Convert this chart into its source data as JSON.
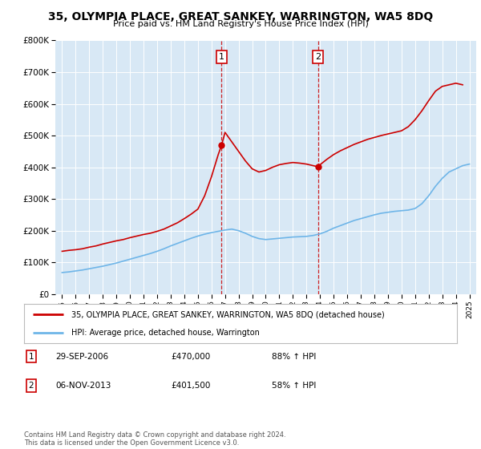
{
  "title": "35, OLYMPIA PLACE, GREAT SANKEY, WARRINGTON, WA5 8DQ",
  "subtitle": "Price paid vs. HM Land Registry's House Price Index (HPI)",
  "legend_line1": "35, OLYMPIA PLACE, GREAT SANKEY, WARRINGTON, WA5 8DQ (detached house)",
  "legend_line2": "HPI: Average price, detached house, Warrington",
  "footnote": "Contains HM Land Registry data © Crown copyright and database right 2024.\nThis data is licensed under the Open Government Licence v3.0.",
  "annotation1_label": "1",
  "annotation1_date": "29-SEP-2006",
  "annotation1_price": "£470,000",
  "annotation1_hpi": "88% ↑ HPI",
  "annotation2_label": "2",
  "annotation2_date": "06-NOV-2013",
  "annotation2_price": "£401,500",
  "annotation2_hpi": "58% ↑ HPI",
  "sale1_x": 2006.75,
  "sale1_y": 470000,
  "sale2_x": 2013.85,
  "sale2_y": 401500,
  "hpi_color": "#6EB5E8",
  "sale_color": "#CC0000",
  "vline_color": "#CC0000",
  "background_color": "#FFFFFF",
  "plot_bg_color": "#D8E8F5",
  "ylim": [
    0,
    800000
  ],
  "xlim_start": 1994.5,
  "xlim_end": 2025.5,
  "hpi_x": [
    1995,
    1995.5,
    1996,
    1996.5,
    1997,
    1997.5,
    1998,
    1998.5,
    1999,
    1999.5,
    2000,
    2000.5,
    2001,
    2001.5,
    2002,
    2002.5,
    2003,
    2003.5,
    2004,
    2004.5,
    2005,
    2005.5,
    2006,
    2006.5,
    2007,
    2007.5,
    2008,
    2008.5,
    2009,
    2009.5,
    2010,
    2010.5,
    2011,
    2011.5,
    2012,
    2012.5,
    2013,
    2013.5,
    2014,
    2014.5,
    2015,
    2015.5,
    2016,
    2016.5,
    2017,
    2017.5,
    2018,
    2018.5,
    2019,
    2019.5,
    2020,
    2020.5,
    2021,
    2021.5,
    2022,
    2022.5,
    2023,
    2023.5,
    2024,
    2024.5,
    2025
  ],
  "hpi_y": [
    68000,
    70000,
    73000,
    76000,
    80000,
    84000,
    88000,
    93000,
    98000,
    104000,
    110000,
    116000,
    122000,
    128000,
    135000,
    143000,
    152000,
    160000,
    168000,
    176000,
    183000,
    189000,
    194000,
    198000,
    202000,
    205000,
    200000,
    192000,
    182000,
    175000,
    172000,
    174000,
    176000,
    178000,
    180000,
    181000,
    182000,
    185000,
    190000,
    198000,
    208000,
    216000,
    224000,
    232000,
    238000,
    244000,
    250000,
    255000,
    258000,
    261000,
    263000,
    265000,
    270000,
    285000,
    310000,
    340000,
    365000,
    385000,
    395000,
    405000,
    410000
  ],
  "sale_x": [
    1995.0,
    1995.5,
    1996.0,
    1996.5,
    1997.0,
    1997.5,
    1998.0,
    1998.5,
    1999.0,
    1999.5,
    2000.0,
    2000.5,
    2001.0,
    2001.5,
    2002.0,
    2002.5,
    2003.0,
    2003.5,
    2004.0,
    2004.5,
    2005.0,
    2005.5,
    2006.0,
    2006.5,
    2006.75,
    2007.0,
    2007.5,
    2008.0,
    2008.5,
    2009.0,
    2009.5,
    2010.0,
    2010.5,
    2011.0,
    2011.5,
    2012.0,
    2012.5,
    2013.0,
    2013.5,
    2013.85,
    2014.0,
    2014.5,
    2015.0,
    2015.5,
    2016.0,
    2016.5,
    2017.0,
    2017.5,
    2018.0,
    2018.5,
    2019.0,
    2019.5,
    2020.0,
    2020.5,
    2021.0,
    2021.5,
    2022.0,
    2022.5,
    2023.0,
    2023.5,
    2024.0,
    2024.5
  ],
  "sale_y": [
    135000,
    138000,
    140000,
    143000,
    148000,
    152000,
    158000,
    163000,
    168000,
    172000,
    178000,
    183000,
    188000,
    192000,
    198000,
    205000,
    215000,
    225000,
    238000,
    252000,
    268000,
    310000,
    370000,
    440000,
    470000,
    510000,
    480000,
    450000,
    420000,
    395000,
    385000,
    390000,
    400000,
    408000,
    412000,
    415000,
    413000,
    410000,
    405000,
    401500,
    408000,
    425000,
    440000,
    452000,
    462000,
    472000,
    480000,
    488000,
    494000,
    500000,
    505000,
    510000,
    515000,
    528000,
    550000,
    578000,
    610000,
    640000,
    655000,
    660000,
    665000,
    660000
  ]
}
